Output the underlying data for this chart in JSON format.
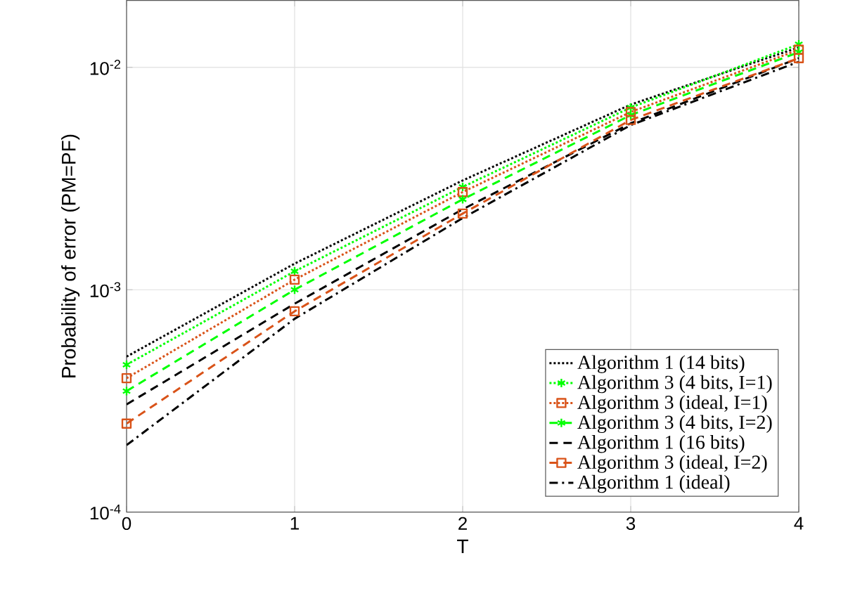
{
  "chart_data": {
    "type": "line",
    "xlabel": "T",
    "ylabel": "Probability of error (PM=PF)",
    "x": [
      0,
      1,
      2,
      3,
      4
    ],
    "xlim": [
      0,
      4
    ],
    "xticks": [
      0,
      1,
      2,
      3,
      4
    ],
    "ylim": [
      0.0001,
      0.02
    ],
    "yticks": [
      {
        "value": 0.0001,
        "label": "10$^{-4}$"
      },
      {
        "value": 0.001,
        "label": "10$^{-3}$"
      },
      {
        "value": 0.01,
        "label": "10$^{-2}$"
      }
    ],
    "log": "y",
    "grid": true,
    "legend": "bottom right",
    "series": [
      {
        "name": "Algorithm 1 (14 bits)",
        "color": "#000000",
        "marker": "none",
        "line_style": "dotted",
        "values": [
          0.0005,
          0.00131,
          0.0031,
          0.0068,
          0.0123
        ]
      },
      {
        "name": "Algorithm 3 (4 bits, I=1)",
        "color": "#00ff00",
        "marker": "cross",
        "line_style": "dotted",
        "values": [
          0.00046,
          0.00121,
          0.0029,
          0.0066,
          0.0127
        ]
      },
      {
        "name": "Algorithm 3 (ideal, I=1)",
        "color": "#d95319",
        "marker": "square",
        "line_style": "dotted",
        "values": [
          0.0004,
          0.00111,
          0.00275,
          0.0063,
          0.012
        ]
      },
      {
        "name": "Algorithm 3 (4 bits, I=2)",
        "color": "#00ff00",
        "marker": "cross",
        "line_style": "dashed",
        "values": [
          0.00035,
          0.001,
          0.00255,
          0.0061,
          0.0117
        ]
      },
      {
        "name": "Algorithm 1 (16 bits)",
        "color": "#000000",
        "marker": "none",
        "line_style": "dashed",
        "values": [
          0.000305,
          0.000865,
          0.0023,
          0.0056,
          0.011
        ]
      },
      {
        "name": "Algorithm 3 (ideal, I=2)",
        "color": "#d95319",
        "marker": "square",
        "line_style": "dashed",
        "values": [
          0.00025,
          0.0008,
          0.0022,
          0.0058,
          0.011
        ]
      },
      {
        "name": "Algorithm 1 (ideal)",
        "color": "#000000",
        "marker": "none",
        "line_style": "dashdot",
        "values": [
          0.0002,
          0.00074,
          0.0021,
          0.0055,
          0.0106
        ]
      }
    ]
  }
}
